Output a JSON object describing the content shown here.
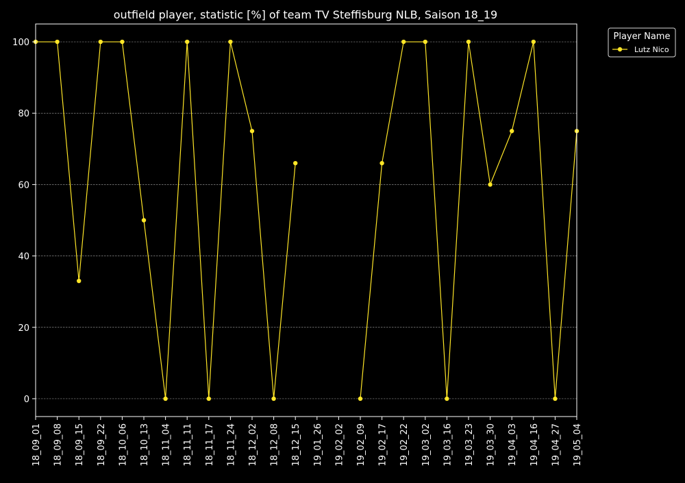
{
  "chart_data": {
    "type": "line",
    "title": "outfield player, statistic [%] of team TV Steffisburg NLB, Saison 18_19",
    "xlabel": "",
    "ylabel": "",
    "categories": [
      "18_09_01",
      "18_09_08",
      "18_09_15",
      "18_09_22",
      "18_10_06",
      "18_10_13",
      "18_11_04",
      "18_11_11",
      "18_11_17",
      "18_11_24",
      "18_12_02",
      "18_12_08",
      "18_12_15",
      "19_01_26",
      "19_02_02",
      "19_02_09",
      "19_02_17",
      "19_02_22",
      "19_03_02",
      "19_03_16",
      "19_03_23",
      "19_03_30",
      "19_04_03",
      "19_04_16",
      "19_04_27",
      "19_05_04"
    ],
    "series": [
      {
        "name": "Lutz Nico",
        "color": "#ffe627",
        "values": [
          100,
          100,
          33,
          100,
          100,
          50,
          0,
          100,
          0,
          100,
          75,
          0,
          66,
          null,
          null,
          0,
          66,
          100,
          100,
          0,
          100,
          60,
          75,
          100,
          0,
          75
        ]
      }
    ],
    "ylim": [
      -5,
      105
    ],
    "yticks": [
      0,
      20,
      40,
      60,
      80,
      100
    ],
    "grid": true,
    "legend": {
      "title": "Player Name",
      "position": "upper-right-outside"
    }
  }
}
